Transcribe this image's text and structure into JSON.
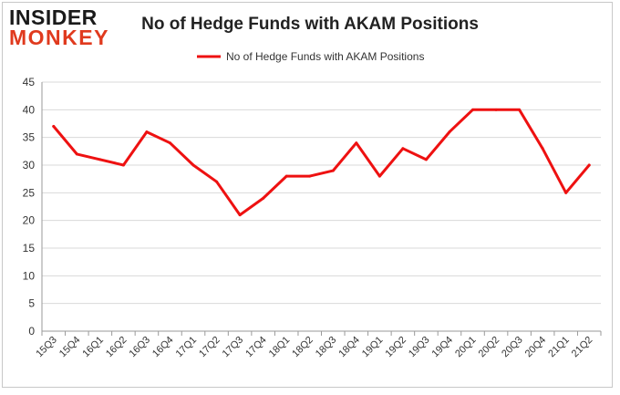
{
  "logo": {
    "line1": "INSIDER",
    "line2": "MONKEY"
  },
  "chart_data": {
    "type": "line",
    "title": "No of Hedge Funds with AKAM Positions",
    "xlabel": "",
    "ylabel": "",
    "ylim": [
      0,
      45
    ],
    "yticks": [
      0,
      5,
      10,
      15,
      20,
      25,
      30,
      35,
      40,
      45
    ],
    "grid": true,
    "legend_position": "top-center",
    "categories": [
      "15Q3",
      "15Q4",
      "16Q1",
      "16Q2",
      "16Q3",
      "16Q4",
      "17Q1",
      "17Q2",
      "17Q3",
      "17Q4",
      "18Q1",
      "18Q2",
      "18Q3",
      "18Q4",
      "19Q1",
      "19Q2",
      "19Q3",
      "19Q4",
      "20Q1",
      "20Q2",
      "20Q3",
      "20Q4",
      "21Q1",
      "21Q2"
    ],
    "series": [
      {
        "name": "No of Hedge Funds with AKAM Positions",
        "color": "#ee1111",
        "values": [
          37,
          32,
          31,
          30,
          36,
          34,
          30,
          27,
          21,
          24,
          28,
          28,
          29,
          34,
          28,
          33,
          31,
          36,
          40,
          40,
          40,
          33,
          25,
          30
        ]
      }
    ]
  }
}
